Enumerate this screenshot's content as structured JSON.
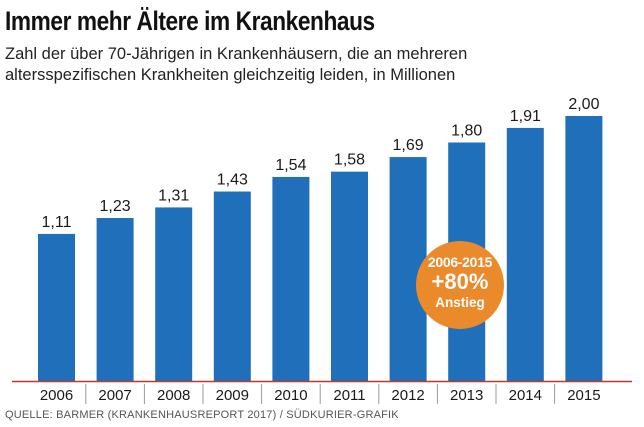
{
  "title": "Immer mehr Ältere im Krankenhaus",
  "subtitle_line1": "Zahl der über 70-Jährigen in Krankenhäusern, die an mehreren",
  "subtitle_line2": "altersspezifischen Krankheiten gleichzeitig leiden, in Millionen",
  "source": "QUELLE: BARMER (KRANKENHAUSREPORT 2017) / SÜDKURIER-GRAFIK",
  "badge": {
    "years": "2006-2015",
    "value": "+80%",
    "label": "Anstieg"
  },
  "colors": {
    "bar": "#1f6fbb",
    "baseline": "#c0392b",
    "badge": "#ea8a2b"
  },
  "chart_data": {
    "type": "bar",
    "title": "Immer mehr Ältere im Krankenhaus",
    "xlabel": "",
    "ylabel": "",
    "categories": [
      "2006",
      "2007",
      "2008",
      "2009",
      "2010",
      "2011",
      "2012",
      "2013",
      "2014",
      "2015"
    ],
    "values": [
      1.11,
      1.23,
      1.31,
      1.43,
      1.54,
      1.58,
      1.69,
      1.8,
      1.91,
      2.0
    ],
    "value_labels": [
      "1,11",
      "1,23",
      "1,31",
      "1,43",
      "1,54",
      "1,58",
      "1,69",
      "1,80",
      "1,91",
      "2,00"
    ],
    "ylim": [
      0,
      2.0
    ],
    "grid": false,
    "legend": "none"
  }
}
